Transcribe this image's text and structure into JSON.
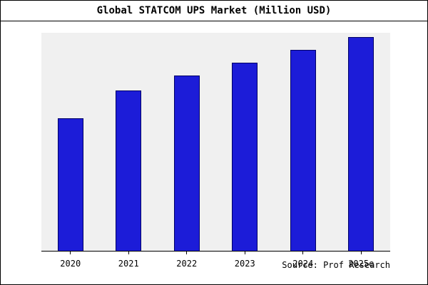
{
  "window": {
    "title": "Global STATCOM UPS Market (Million USD)"
  },
  "footer": {
    "source_label": "Source: Prof Research"
  },
  "chart_data": {
    "type": "bar",
    "title": "Global STATCOM UPS Market (Million USD)",
    "categories": [
      "2020",
      "2021",
      "2022",
      "2023",
      "2024",
      "2025e"
    ],
    "values": [
      62,
      75,
      82,
      88,
      94,
      100
    ],
    "xlabel": "",
    "ylabel": "",
    "ylim": [
      0,
      102
    ],
    "grid": false,
    "legend": false,
    "bar_color": "#1c1cd8",
    "bar_edge_color": "#000066",
    "plot_background": "#f0f0f0",
    "annotations": [
      "Source: Prof Research"
    ]
  }
}
